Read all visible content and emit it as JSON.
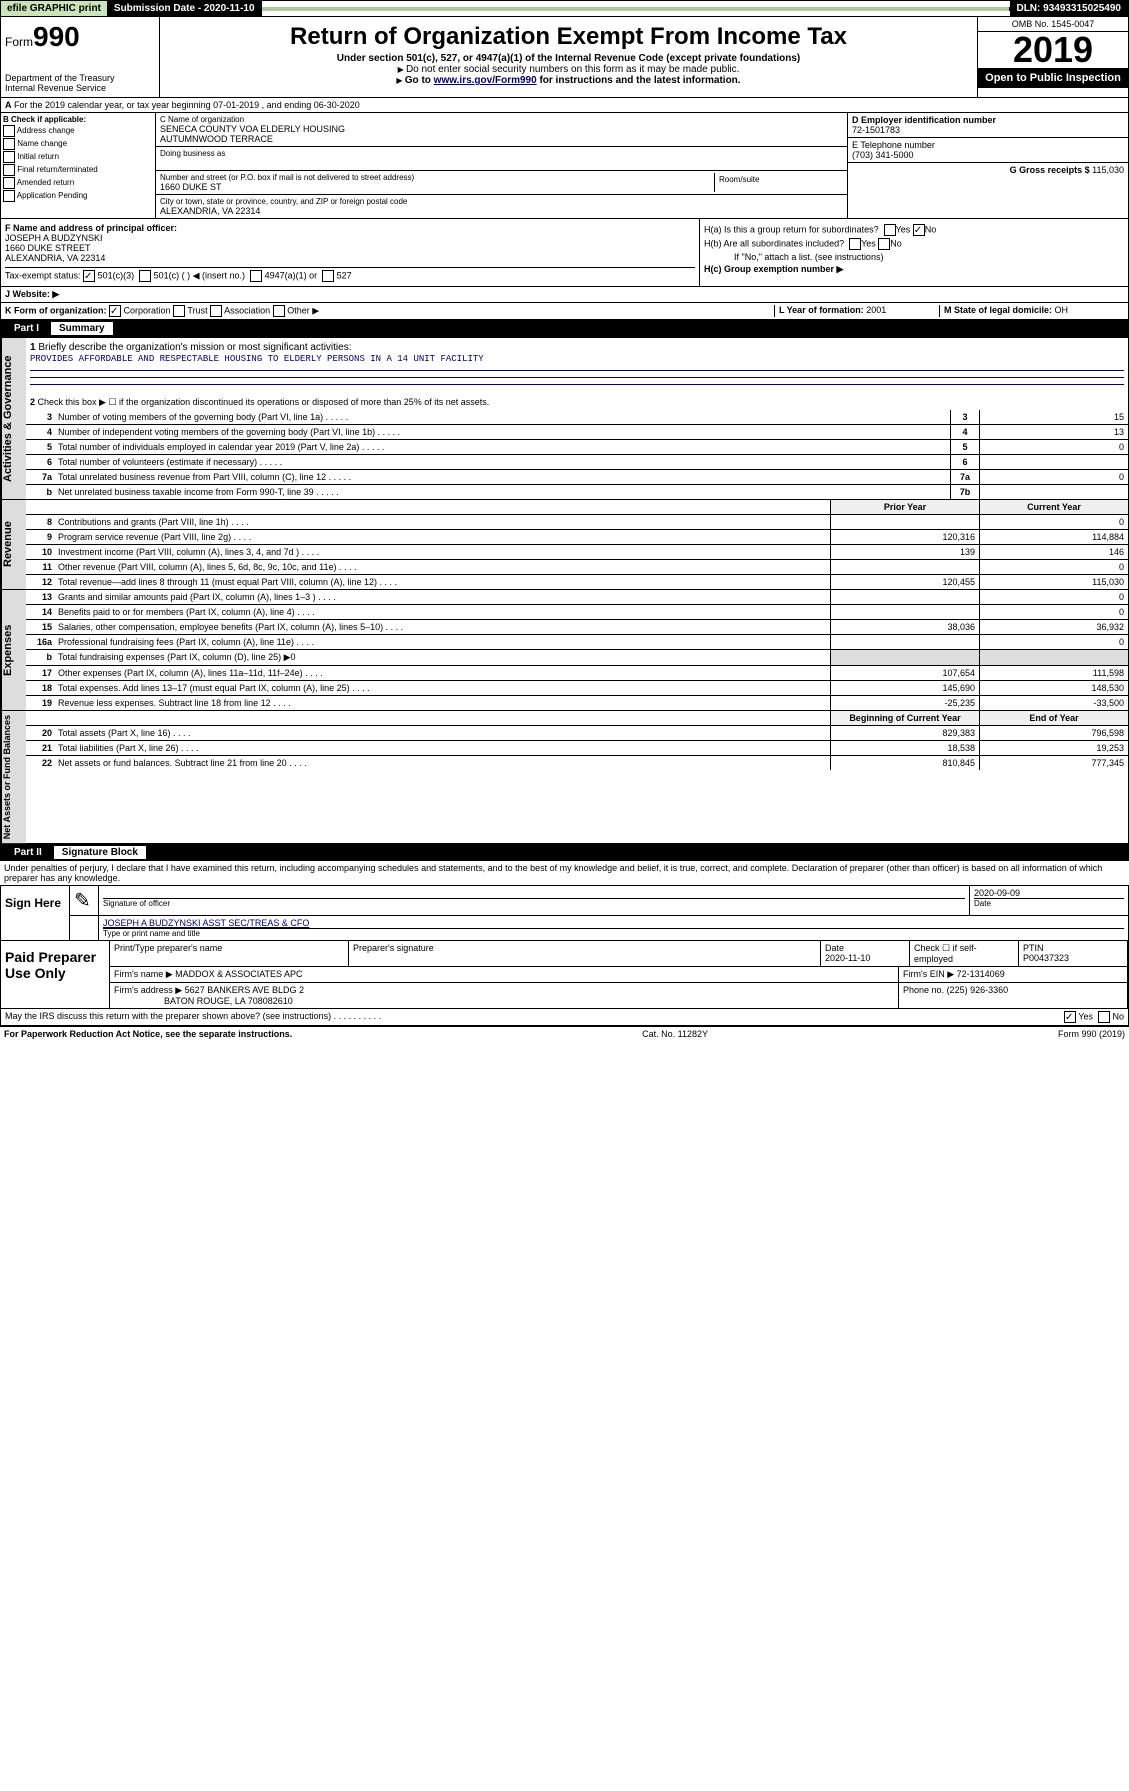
{
  "top": {
    "efile": "efile GRAPHIC print",
    "submission_label": "Submission Date - 2020-11-10",
    "dln": "DLN: 93493315025490"
  },
  "header": {
    "form_prefix": "Form",
    "form_num": "990",
    "dept": "Department of the Treasury\nInternal Revenue Service",
    "title": "Return of Organization Exempt From Income Tax",
    "subtitle": "Under section 501(c), 527, or 4947(a)(1) of the Internal Revenue Code (except private foundations)",
    "note1": "Do not enter social security numbers on this form as it may be made public.",
    "note2_pre": "Go to ",
    "note2_link": "www.irs.gov/Form990",
    "note2_post": " for instructions and the latest information.",
    "omb": "OMB No. 1545-0047",
    "year": "2019",
    "open": "Open to Public Inspection"
  },
  "periodA": "For the 2019 calendar year, or tax year beginning 07-01-2019    , and ending 06-30-2020",
  "checkB": {
    "label": "B Check if applicable:",
    "items": [
      "Address change",
      "Name change",
      "Initial return",
      "Final return/terminated",
      "Amended return",
      "Application Pending"
    ]
  },
  "boxC": {
    "name_label": "C Name of organization",
    "name": "SENECA COUNTY VOA ELDERLY HOUSING\nAUTUMNWOOD TERRACE",
    "dba_label": "Doing business as",
    "addr_label": "Number and street (or P.O. box if mail is not delivered to street address)",
    "room_label": "Room/suite",
    "addr": "1660 DUKE ST",
    "city_label": "City or town, state or province, country, and ZIP or foreign postal code",
    "city": "ALEXANDRIA, VA  22314"
  },
  "boxD": {
    "label": "D Employer identification number",
    "val": "72-1501783"
  },
  "boxE": {
    "label": "E Telephone number",
    "val": "(703) 341-5000"
  },
  "boxG": {
    "label": "G Gross receipts $",
    "val": "115,030"
  },
  "boxF": {
    "label": "F  Name and address of principal officer:",
    "name": "JOSEPH A BUDZYNSKI",
    "addr1": "1660 DUKE STREET",
    "addr2": "ALEXANDRIA, VA  22314"
  },
  "boxH": {
    "a": "H(a)  Is this a group return for subordinates?",
    "b": "H(b)  Are all subordinates included?",
    "bnote": "If \"No,\" attach a list. (see instructions)",
    "c": "H(c)  Group exemption number ▶"
  },
  "taxExempt": {
    "label": "Tax-exempt status:",
    "opt1": "501(c)(3)",
    "opt2": "501(c) (   ) ◀ (insert no.)",
    "opt3": "4947(a)(1) or",
    "opt4": "527"
  },
  "boxJ": {
    "label": "J   Website: ▶"
  },
  "boxK": {
    "label": "K Form of organization:",
    "opts": [
      "Corporation",
      "Trust",
      "Association",
      "Other ▶"
    ]
  },
  "boxL": {
    "label": "L Year of formation:",
    "val": "2001"
  },
  "boxM": {
    "label": "M State of legal domicile:",
    "val": "OH"
  },
  "part1": {
    "num": "Part I",
    "title": "Summary"
  },
  "summary": {
    "q1": "Briefly describe the organization's mission or most significant activities:",
    "mission": "PROVIDES AFFORDABLE AND RESPECTABLE HOUSING TO ELDERLY PERSONS IN A 14 UNIT FACILITY",
    "q2": "Check this box ▶ ☐  if the organization discontinued its operations or disposed of more than 25% of its net assets.",
    "rows_gov": [
      {
        "n": "3",
        "d": "Number of voting members of the governing body (Part VI, line 1a)",
        "b": "3",
        "v": "15"
      },
      {
        "n": "4",
        "d": "Number of independent voting members of the governing body (Part VI, line 1b)",
        "b": "4",
        "v": "13"
      },
      {
        "n": "5",
        "d": "Total number of individuals employed in calendar year 2019 (Part V, line 2a)",
        "b": "5",
        "v": "0"
      },
      {
        "n": "6",
        "d": "Total number of volunteers (estimate if necessary)",
        "b": "6",
        "v": ""
      },
      {
        "n": "7a",
        "d": "Total unrelated business revenue from Part VIII, column (C), line 12",
        "b": "7a",
        "v": "0"
      },
      {
        "n": "b",
        "d": "Net unrelated business taxable income from Form 990-T, line 39",
        "b": "7b",
        "v": ""
      }
    ],
    "col_prior": "Prior Year",
    "col_current": "Current Year",
    "rows_rev": [
      {
        "n": "8",
        "d": "Contributions and grants (Part VIII, line 1h)",
        "p": "",
        "c": "0"
      },
      {
        "n": "9",
        "d": "Program service revenue (Part VIII, line 2g)",
        "p": "120,316",
        "c": "114,884"
      },
      {
        "n": "10",
        "d": "Investment income (Part VIII, column (A), lines 3, 4, and 7d )",
        "p": "139",
        "c": "146"
      },
      {
        "n": "11",
        "d": "Other revenue (Part VIII, column (A), lines 5, 6d, 8c, 9c, 10c, and 11e)",
        "p": "",
        "c": "0"
      },
      {
        "n": "12",
        "d": "Total revenue—add lines 8 through 11 (must equal Part VIII, column (A), line 12)",
        "p": "120,455",
        "c": "115,030"
      }
    ],
    "rows_exp": [
      {
        "n": "13",
        "d": "Grants and similar amounts paid (Part IX, column (A), lines 1–3 )",
        "p": "",
        "c": "0"
      },
      {
        "n": "14",
        "d": "Benefits paid to or for members (Part IX, column (A), line 4)",
        "p": "",
        "c": "0"
      },
      {
        "n": "15",
        "d": "Salaries, other compensation, employee benefits (Part IX, column (A), lines 5–10)",
        "p": "38,036",
        "c": "36,932"
      },
      {
        "n": "16a",
        "d": "Professional fundraising fees (Part IX, column (A), line 11e)",
        "p": "",
        "c": "0"
      },
      {
        "n": "b",
        "d": "Total fundraising expenses (Part IX, column (D), line 25) ▶0",
        "p": "",
        "c": "",
        "noval": true
      },
      {
        "n": "17",
        "d": "Other expenses (Part IX, column (A), lines 11a–11d, 11f–24e)",
        "p": "107,654",
        "c": "111,598"
      },
      {
        "n": "18",
        "d": "Total expenses. Add lines 13–17 (must equal Part IX, column (A), line 25)",
        "p": "145,690",
        "c": "148,530"
      },
      {
        "n": "19",
        "d": "Revenue less expenses. Subtract line 18 from line 12",
        "p": "-25,235",
        "c": "-33,500"
      }
    ],
    "col_begin": "Beginning of Current Year",
    "col_end": "End of Year",
    "rows_net": [
      {
        "n": "20",
        "d": "Total assets (Part X, line 16)",
        "p": "829,383",
        "c": "796,598"
      },
      {
        "n": "21",
        "d": "Total liabilities (Part X, line 26)",
        "p": "18,538",
        "c": "19,253"
      },
      {
        "n": "22",
        "d": "Net assets or fund balances. Subtract line 21 from line 20",
        "p": "810,845",
        "c": "777,345"
      }
    ],
    "side_gov": "Activities & Governance",
    "side_rev": "Revenue",
    "side_exp": "Expenses",
    "side_net": "Net Assets or Fund Balances"
  },
  "part2": {
    "num": "Part II",
    "title": "Signature Block"
  },
  "perjury": "Under penalties of perjury, I declare that I have examined this return, including accompanying schedules and statements, and to the best of my knowledge and belief, it is true, correct, and complete. Declaration of preparer (other than officer) is based on all information of which preparer has any knowledge.",
  "sign": {
    "left": "Sign Here",
    "sig_label": "Signature of officer",
    "date": "2020-09-09",
    "date_label": "Date",
    "name": "JOSEPH A BUDZYNSKI  ASST SEC/TREAS & CFO",
    "name_label": "Type or print name and title"
  },
  "paid": {
    "left": "Paid Preparer Use Only",
    "h1": "Print/Type preparer's name",
    "h2": "Preparer's signature",
    "h3": "Date",
    "h3v": "2020-11-10",
    "h4": "Check ☐ if self-employed",
    "h5": "PTIN",
    "h5v": "P00437323",
    "firm_label": "Firm's name    ▶",
    "firm": "MADDOX & ASSOCIATES APC",
    "ein_label": "Firm's EIN ▶",
    "ein": "72-1314069",
    "addr_label": "Firm's address ▶",
    "addr1": "5627 BANKERS AVE BLDG 2",
    "addr2": "BATON ROUGE, LA  708082610",
    "phone_label": "Phone no.",
    "phone": "(225) 926-3360"
  },
  "discuss": "May the IRS discuss this return with the preparer shown above? (see instructions)",
  "footer": {
    "left": "For Paperwork Reduction Act Notice, see the separate instructions.",
    "mid": "Cat. No. 11282Y",
    "right": "Form 990 (2019)"
  }
}
